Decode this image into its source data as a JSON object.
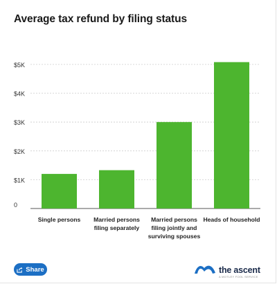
{
  "chart_data": {
    "type": "bar",
    "title": "Average tax refund by filing status",
    "categories": [
      [
        "Single persons"
      ],
      [
        "Married persons",
        "filing separately"
      ],
      [
        "Married persons",
        "filing jointly and",
        "surviving spouses"
      ],
      [
        "Heads of household"
      ]
    ],
    "values": [
      1200,
      1330,
      3000,
      5080
    ],
    "ylim": [
      0,
      5000
    ],
    "yticks": [
      {
        "value": 0,
        "label": "0"
      },
      {
        "value": 1000,
        "label": "$1K"
      },
      {
        "value": 2000,
        "label": "$2K"
      },
      {
        "value": 3000,
        "label": "$3K"
      },
      {
        "value": 4000,
        "label": "$4K"
      },
      {
        "value": 5000,
        "label": "$5K"
      }
    ],
    "grid": true,
    "bar_color": "#4db52f",
    "grid_color": "#cccccc"
  },
  "share": {
    "label": "Share",
    "icon": "share-icon",
    "color": "#1c6fc4"
  },
  "brand": {
    "name": "the ascent",
    "tagline": "A MOTLEY FOOL SERVICE",
    "logo": "ascent-logo-icon",
    "logo_color": "#1c6fc4"
  }
}
